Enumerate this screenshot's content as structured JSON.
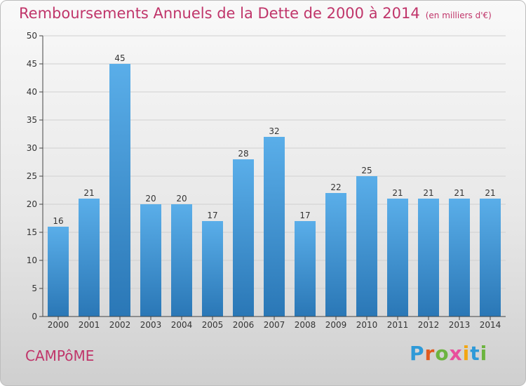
{
  "header": {
    "title": "Remboursements Annuels de la Dette de 2000 à 2014",
    "subtitle": "(en milliers d'€)"
  },
  "footer": {
    "town": "CAMPôME",
    "logo_text": "Proxiti",
    "logo_colors": [
      "#2e9ad8",
      "#e05a1f",
      "#6cb43f",
      "#e84e9c",
      "#f2a614",
      "#2e9ad8",
      "#6cb43f"
    ]
  },
  "chart_data": {
    "type": "bar",
    "categories": [
      "2000",
      "2001",
      "2002",
      "2003",
      "2004",
      "2005",
      "2006",
      "2007",
      "2008",
      "2009",
      "2010",
      "2011",
      "2012",
      "2013",
      "2014"
    ],
    "values": [
      16,
      21,
      45,
      20,
      20,
      17,
      28,
      32,
      17,
      22,
      25,
      21,
      21,
      21,
      21
    ],
    "title": "Remboursements Annuels de la Dette de 2000 à 2014",
    "subtitle": "(en milliers d'€)",
    "ylim": [
      0,
      50
    ],
    "yticks": [
      0,
      5,
      10,
      15,
      20,
      25,
      30,
      35,
      40,
      45,
      50
    ],
    "grid": true,
    "bar_color": "#4a9fe0",
    "data_labels": true
  }
}
